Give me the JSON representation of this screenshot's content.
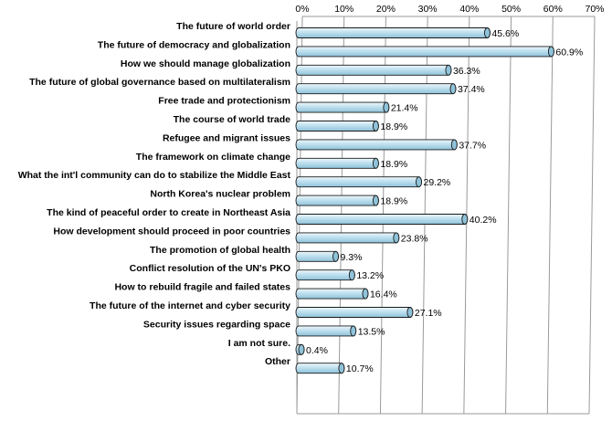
{
  "chart_data": {
    "type": "bar",
    "orientation": "horizontal",
    "title": "",
    "xlabel": "",
    "ylabel": "",
    "categories": [
      "The future of world order",
      "The future of democracy and globalization",
      "How we should manage globalization",
      "The future of global governance based on multilateralism",
      "Free trade and protectionism",
      "The course of world trade",
      "Refugee and migrant issues",
      "The framework on climate change",
      "What the int'l community can do to stabilize the Middle East",
      "North Korea's nuclear problem",
      "The kind of peaceful order to create in Northeast Asia",
      "How development should proceed in poor countries",
      "The promotion of global health",
      "Conflict resolution of the UN's PKO",
      "How to rebuild fragile and failed states",
      "The future of the internet and cyber security",
      "Security issues regarding space",
      "I am not sure.",
      "Other"
    ],
    "values": [
      45.6,
      60.9,
      36.3,
      37.4,
      21.4,
      18.9,
      37.7,
      18.9,
      29.2,
      18.9,
      40.2,
      23.8,
      9.3,
      13.2,
      16.4,
      27.1,
      13.5,
      0.4,
      10.7
    ],
    "data_labels": [
      "45.6%",
      "60.9%",
      "36.3%",
      "37.4%",
      "21.4%",
      "18.9%",
      "37.7%",
      "18.9%",
      "29.2%",
      "18.9%",
      "40.2%",
      "23.8%",
      "9.3%",
      "13.2%",
      "16.4%",
      "27.1%",
      "13.5%",
      "0.4%",
      "10.7%"
    ],
    "xlim": [
      0,
      70
    ],
    "x_ticks": [
      0,
      10,
      20,
      30,
      40,
      50,
      60,
      70
    ],
    "x_tick_labels": [
      "0%",
      "10%",
      "20%",
      "30%",
      "40%",
      "50%",
      "60%",
      "70%"
    ],
    "x_axis_position": "top",
    "grid": true,
    "legend": "none",
    "style": "3d-cylinder",
    "colors": {
      "bar_fill_light": "#eef8fc",
      "bar_fill_mid": "#bfe0ee",
      "bar_fill_dark": "#8fc3da",
      "bar_outline": "#1a1a1a",
      "grid_line": "#9a9a9a",
      "text": "#000000"
    }
  }
}
